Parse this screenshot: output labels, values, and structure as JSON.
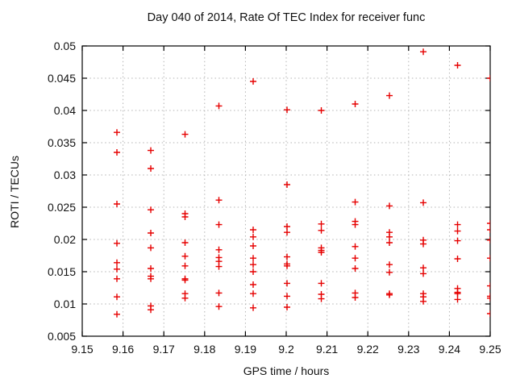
{
  "title": "Day 040 of 2014, Rate Of TEC Index for receiver func",
  "chart_data": {
    "type": "scatter",
    "title": "Day 040 of 2014, Rate Of TEC Index for receiver func",
    "xlabel": "GPS time / hours",
    "ylabel": "ROTI / TECUs",
    "xlim": [
      9.15,
      9.25
    ],
    "ylim": [
      0.005,
      0.05
    ],
    "xticks": [
      9.15,
      9.16,
      9.17,
      9.18,
      9.19,
      9.2,
      9.21,
      9.22,
      9.23,
      9.24,
      9.25
    ],
    "xtick_labels": [
      "9.15",
      "9.16",
      "9.17",
      "9.18",
      "9.19",
      "9.2",
      "9.21",
      "9.22",
      "9.23",
      "9.24",
      "9.25"
    ],
    "yticks": [
      0.005,
      0.01,
      0.015,
      0.02,
      0.025,
      0.03,
      0.035,
      0.04,
      0.045,
      0.05
    ],
    "ytick_labels": [
      "0.005",
      "0.01",
      "0.015",
      "0.02",
      "0.025",
      "0.03",
      "0.035",
      "0.04",
      "0.045",
      "0.05"
    ],
    "grid": true,
    "legend_position": "none",
    "marker_symbol": "plus",
    "marker_color": "#e60000",
    "grid_color": "#b3b3b3",
    "border_color": "#000000",
    "series": [
      {
        "name": "ROTI",
        "points": [
          [
            9.1585,
            0.0366
          ],
          [
            9.1585,
            0.0335
          ],
          [
            9.1585,
            0.0255
          ],
          [
            9.1585,
            0.0194
          ],
          [
            9.1585,
            0.0164
          ],
          [
            9.1585,
            0.0154
          ],
          [
            9.1585,
            0.0139
          ],
          [
            9.1585,
            0.0111
          ],
          [
            9.1585,
            0.0084
          ],
          [
            9.1668,
            0.0338
          ],
          [
            9.1668,
            0.031
          ],
          [
            9.1668,
            0.0246
          ],
          [
            9.1668,
            0.021
          ],
          [
            9.1668,
            0.0187
          ],
          [
            9.1668,
            0.0155
          ],
          [
            9.1668,
            0.0143
          ],
          [
            9.1668,
            0.0139
          ],
          [
            9.1668,
            0.0097
          ],
          [
            9.1668,
            0.0091
          ],
          [
            9.1752,
            0.0363
          ],
          [
            9.1752,
            0.024
          ],
          [
            9.1752,
            0.0235
          ],
          [
            9.1752,
            0.0195
          ],
          [
            9.1752,
            0.0174
          ],
          [
            9.1752,
            0.0159
          ],
          [
            9.1752,
            0.0139
          ],
          [
            9.1752,
            0.0137
          ],
          [
            9.1752,
            0.0116
          ],
          [
            9.1752,
            0.0109
          ],
          [
            9.1835,
            0.0407
          ],
          [
            9.1835,
            0.0261
          ],
          [
            9.1835,
            0.0223
          ],
          [
            9.1835,
            0.0184
          ],
          [
            9.1835,
            0.0172
          ],
          [
            9.1835,
            0.0166
          ],
          [
            9.1835,
            0.0158
          ],
          [
            9.1835,
            0.0117
          ],
          [
            9.1835,
            0.0096
          ],
          [
            9.1919,
            0.0445
          ],
          [
            9.1919,
            0.0215
          ],
          [
            9.1919,
            0.0204
          ],
          [
            9.1919,
            0.019
          ],
          [
            9.1919,
            0.0171
          ],
          [
            9.1919,
            0.0161
          ],
          [
            9.1919,
            0.015
          ],
          [
            9.1919,
            0.013
          ],
          [
            9.1919,
            0.0116
          ],
          [
            9.1919,
            0.0094
          ],
          [
            9.2002,
            0.0401
          ],
          [
            9.2002,
            0.0285
          ],
          [
            9.2002,
            0.022
          ],
          [
            9.2002,
            0.0211
          ],
          [
            9.2002,
            0.0173
          ],
          [
            9.2002,
            0.0162
          ],
          [
            9.2002,
            0.0159
          ],
          [
            9.2002,
            0.0132
          ],
          [
            9.2002,
            0.0112
          ],
          [
            9.2002,
            0.0095
          ],
          [
            9.2086,
            0.04
          ],
          [
            9.2086,
            0.0224
          ],
          [
            9.2086,
            0.0214
          ],
          [
            9.2086,
            0.0187
          ],
          [
            9.2086,
            0.0183
          ],
          [
            9.2086,
            0.018
          ],
          [
            9.2086,
            0.0132
          ],
          [
            9.2086,
            0.0115
          ],
          [
            9.2086,
            0.0108
          ],
          [
            9.2169,
            0.041
          ],
          [
            9.2169,
            0.0258
          ],
          [
            9.2169,
            0.0228
          ],
          [
            9.2169,
            0.0223
          ],
          [
            9.2169,
            0.0189
          ],
          [
            9.2169,
            0.0171
          ],
          [
            9.2169,
            0.0155
          ],
          [
            9.2169,
            0.0117
          ],
          [
            9.2169,
            0.011
          ],
          [
            9.2253,
            0.0423
          ],
          [
            9.2253,
            0.0252
          ],
          [
            9.2253,
            0.0211
          ],
          [
            9.2253,
            0.0204
          ],
          [
            9.2253,
            0.0195
          ],
          [
            9.2253,
            0.0161
          ],
          [
            9.2253,
            0.0149
          ],
          [
            9.2253,
            0.0116
          ],
          [
            9.2253,
            0.0114
          ],
          [
            9.2336,
            0.0491
          ],
          [
            9.2336,
            0.0257
          ],
          [
            9.2336,
            0.0199
          ],
          [
            9.2336,
            0.0193
          ],
          [
            9.2336,
            0.0156
          ],
          [
            9.2336,
            0.0147
          ],
          [
            9.2336,
            0.0116
          ],
          [
            9.2336,
            0.0111
          ],
          [
            9.2336,
            0.0104
          ],
          [
            9.242,
            0.047
          ],
          [
            9.242,
            0.0223
          ],
          [
            9.242,
            0.0213
          ],
          [
            9.242,
            0.0198
          ],
          [
            9.242,
            0.017
          ],
          [
            9.242,
            0.0124
          ],
          [
            9.242,
            0.0118
          ],
          [
            9.242,
            0.0116
          ],
          [
            9.242,
            0.0107
          ],
          [
            9.25,
            0.045
          ],
          [
            9.25,
            0.0225
          ],
          [
            9.25,
            0.0215
          ],
          [
            9.25,
            0.0199
          ],
          [
            9.25,
            0.0171
          ],
          [
            9.25,
            0.0128
          ],
          [
            9.25,
            0.0112
          ],
          [
            9.25,
            0.0109
          ],
          [
            9.25,
            0.0085
          ]
        ]
      }
    ]
  }
}
